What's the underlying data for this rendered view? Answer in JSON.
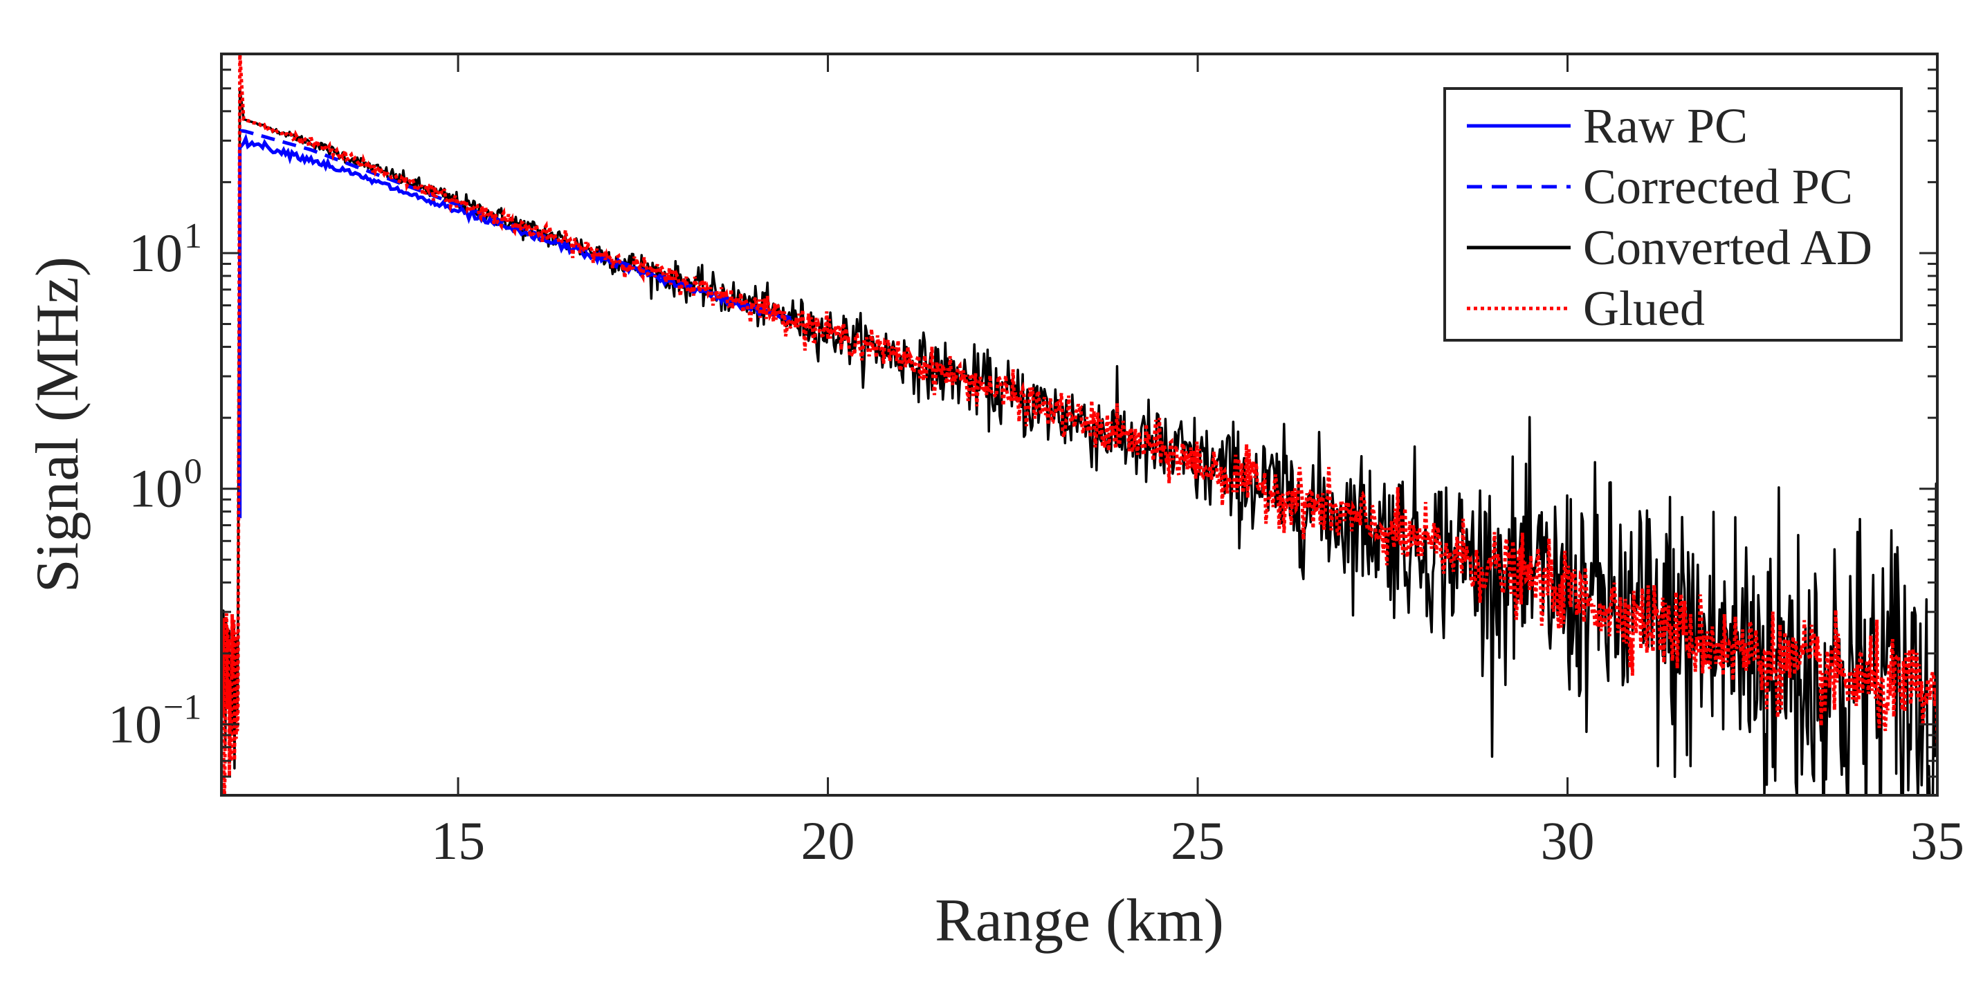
{
  "chart_data": {
    "type": "line",
    "title": "",
    "xlabel": "Range (km)",
    "ylabel": "Signal (MHz)",
    "xlim": [
      11.8,
      35
    ],
    "ylim": [
      0.05,
      70
    ],
    "yscale": "log",
    "x_ticks": [
      15,
      20,
      25,
      30,
      35
    ],
    "x_tick_labels": [
      "15",
      "20",
      "25",
      "30",
      "35"
    ],
    "y_ticks": [
      {
        "value": 0.1,
        "base": "10",
        "exponent": "−1"
      },
      {
        "value": 1,
        "base": "10",
        "exponent": "0"
      },
      {
        "value": 10,
        "base": "10",
        "exponent": "1"
      }
    ],
    "legend": {
      "position": "top-right",
      "entries": [
        "Raw PC",
        "Corrected PC",
        "Converted AD",
        "Glued"
      ]
    },
    "colors": {
      "raw_pc": "#0000ff",
      "corrected_pc": "#0000ff",
      "converted_ad": "#000000",
      "glued": "#ff0000",
      "axes": "#262626"
    },
    "series": [
      {
        "name": "Raw PC",
        "style": "solid",
        "color": "#0000ff",
        "x": [
          12.05,
          12.05,
          12.1,
          13,
          14,
          15,
          16,
          17,
          18,
          19,
          19.5
        ],
        "y": [
          0.75,
          28,
          30,
          25,
          19.5,
          15,
          11.8,
          9.3,
          7.3,
          5.8,
          5.2
        ]
      },
      {
        "name": "Corrected PC",
        "style": "dashed",
        "color": "#0000ff",
        "x": [
          12.05,
          12.1,
          13,
          14,
          15,
          16,
          17,
          18,
          19,
          19.5
        ],
        "y": [
          33,
          33,
          27.5,
          21,
          16,
          12.3,
          9.6,
          7.5,
          5.9,
          5.3
        ]
      },
      {
        "name": "Converted AD",
        "style": "solid",
        "color": "#000000",
        "x": [
          12.0,
          12.05,
          12.1,
          13,
          14,
          15,
          16,
          17,
          18,
          19,
          20,
          21,
          22,
          23,
          24,
          25,
          26,
          27,
          28,
          29,
          30,
          31,
          32,
          33,
          34,
          35
        ],
        "y": [
          0.06,
          50,
          37,
          29.5,
          22,
          16.5,
          12.5,
          9.7,
          7.6,
          6.0,
          4.65,
          3.6,
          2.8,
          2.15,
          1.65,
          1.28,
          0.98,
          0.76,
          0.59,
          0.46,
          0.36,
          0.28,
          0.22,
          0.18,
          0.15,
          0.13
        ],
        "noise_amplitude_log10": [
          0,
          0,
          0,
          0.01,
          0.015,
          0.02,
          0.025,
          0.03,
          0.035,
          0.04,
          0.05,
          0.06,
          0.07,
          0.08,
          0.09,
          0.1,
          0.12,
          0.14,
          0.17,
          0.2,
          0.24,
          0.28,
          0.32,
          0.35,
          0.37,
          0.38
        ]
      },
      {
        "name": "Glued",
        "style": "dotted",
        "color": "#ff0000",
        "x": [
          12.05,
          12.1,
          13,
          14,
          15,
          16,
          17,
          18,
          19,
          20,
          21,
          22,
          23,
          24,
          25,
          26,
          27,
          28,
          29,
          30,
          31,
          32,
          33,
          34,
          35
        ],
        "y": [
          70,
          37,
          29.5,
          22,
          16.5,
          12.5,
          9.7,
          7.6,
          6.0,
          4.65,
          3.6,
          2.8,
          2.15,
          1.65,
          1.28,
          0.98,
          0.76,
          0.59,
          0.46,
          0.36,
          0.28,
          0.22,
          0.18,
          0.15,
          0.13
        ],
        "noise_amplitude_log10": [
          0,
          0,
          0.01,
          0.012,
          0.015,
          0.018,
          0.02,
          0.024,
          0.028,
          0.032,
          0.036,
          0.04,
          0.045,
          0.05,
          0.055,
          0.06,
          0.065,
          0.07,
          0.075,
          0.08,
          0.085,
          0.09,
          0.095,
          0.1,
          0.1
        ]
      }
    ]
  }
}
